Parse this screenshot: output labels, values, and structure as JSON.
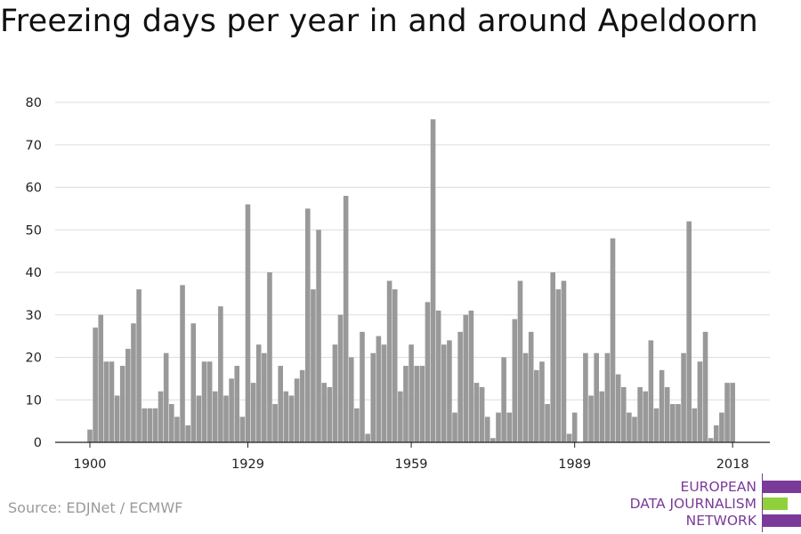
{
  "title": "Freezing days per year in and around Apeldoorn",
  "source": "Source: EDJNet / ECMWF",
  "logo": {
    "lines": [
      "EUROPEAN",
      "DATA JOURNALISM",
      "NETWORK"
    ],
    "colors": [
      "#7a3a9a",
      "#8fd13b",
      "#7a3a9a"
    ]
  },
  "chart_data": {
    "type": "bar",
    "title": "Freezing days per year in and around Apeldoorn",
    "xlabel": "",
    "ylabel": "",
    "x_start": 1900,
    "x_end": 2018,
    "xticks": [
      1900,
      1929,
      1959,
      1989,
      2018
    ],
    "yticks": [
      0,
      10,
      20,
      30,
      40,
      50,
      60,
      70,
      80
    ],
    "ylim": [
      0,
      80
    ],
    "bar_color": "#999999",
    "grid": true,
    "values": [
      3,
      27,
      30,
      19,
      19,
      11,
      18,
      22,
      28,
      36,
      8,
      8,
      8,
      12,
      21,
      9,
      6,
      37,
      4,
      28,
      11,
      19,
      19,
      12,
      32,
      11,
      15,
      18,
      6,
      56,
      14,
      23,
      21,
      40,
      9,
      18,
      12,
      11,
      15,
      17,
      55,
      36,
      50,
      14,
      13,
      23,
      30,
      58,
      20,
      8,
      26,
      2,
      21,
      25,
      23,
      38,
      36,
      12,
      18,
      23,
      18,
      18,
      33,
      76,
      31,
      23,
      24,
      7,
      26,
      30,
      31,
      14,
      13,
      6,
      1,
      7,
      20,
      7,
      29,
      38,
      21,
      26,
      17,
      19,
      9,
      40,
      36,
      38,
      2,
      7,
      0,
      21,
      11,
      21,
      12,
      21,
      48,
      16,
      13,
      7,
      6,
      13,
      12,
      24,
      8,
      17,
      13,
      9,
      9,
      21,
      52,
      8,
      19,
      26,
      1,
      4,
      7,
      14,
      14
    ]
  }
}
